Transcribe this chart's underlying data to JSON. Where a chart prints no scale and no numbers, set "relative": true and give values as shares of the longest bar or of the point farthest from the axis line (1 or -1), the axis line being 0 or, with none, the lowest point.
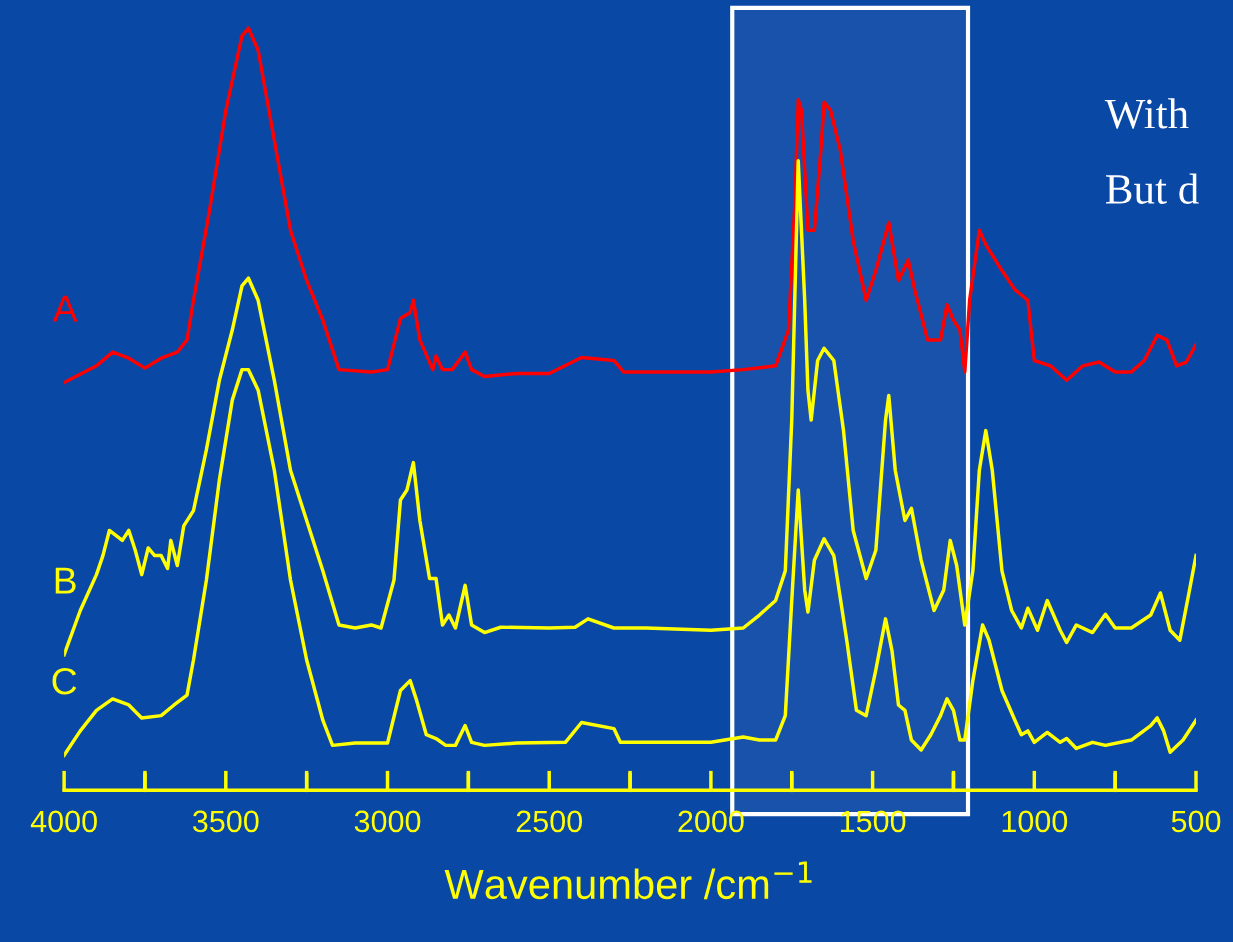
{
  "chart_data": {
    "type": "line",
    "relative": true,
    "xlabel": "Wavenumber /cm$^{−1}$",
    "xlim": [
      4000,
      500
    ],
    "xticks": [
      4000,
      {
        "value": 3750,
        "label": null
      },
      3500,
      {
        "value": 3250,
        "label": null
      },
      3000,
      {
        "value": 2750,
        "label": null
      },
      2500,
      {
        "value": 2250,
        "label": null
      },
      2000,
      {
        "value": 1750,
        "label": null
      },
      1500,
      {
        "value": 1250,
        "label": null
      },
      1000,
      {
        "value": 750,
        "label": null
      },
      500
    ],
    "tick_labels": "x",
    "grid": false,
    "legend": false,
    "marker": "none",
    "line_style": "solid",
    "annotations": [
      "With",
      "But d"
    ],
    "bands": [
      {
        "axis": "x",
        "from": 1934,
        "to": 1205,
        "color": "#ffffff"
      }
    ],
    "series": [
      {
        "name": "A",
        "color": "#ff0000",
        "x": [
          4000,
          3900,
          3850,
          3800,
          3750,
          3700,
          3650,
          3620,
          3600,
          3550,
          3500,
          3450,
          3430,
          3400,
          3350,
          3300,
          3250,
          3200,
          3150,
          3050,
          3000,
          2960,
          2930,
          2920,
          2900,
          2860,
          2850,
          2830,
          2800,
          2760,
          2740,
          2700,
          2600,
          2500,
          2400,
          2300,
          2270,
          2200,
          2000,
          1900,
          1800,
          1760,
          1740,
          1730,
          1720,
          1700,
          1680,
          1660,
          1650,
          1630,
          1600,
          1560,
          1520,
          1490,
          1450,
          1420,
          1390,
          1370,
          1330,
          1290,
          1270,
          1250,
          1230,
          1215,
          1200,
          1170,
          1150,
          1100,
          1060,
          1020,
          1000,
          950,
          900,
          850,
          800,
          750,
          700,
          660,
          620,
          590,
          560,
          530,
          500
        ],
        "values": [
          0.535,
          0.557,
          0.575,
          0.567,
          0.554,
          0.567,
          0.575,
          0.591,
          0.643,
          0.762,
          0.892,
          0.99,
          1.0,
          0.971,
          0.853,
          0.735,
          0.669,
          0.617,
          0.552,
          0.549,
          0.552,
          0.619,
          0.627,
          0.643,
          0.591,
          0.552,
          0.57,
          0.552,
          0.552,
          0.575,
          0.552,
          0.543,
          0.547,
          0.547,
          0.568,
          0.564,
          0.549,
          0.549,
          0.549,
          0.552,
          0.557,
          0.604,
          0.774,
          0.906,
          0.892,
          0.735,
          0.735,
          0.84,
          0.903,
          0.892,
          0.84,
          0.721,
          0.643,
          0.682,
          0.745,
          0.669,
          0.696,
          0.657,
          0.591,
          0.591,
          0.637,
          0.617,
          0.604,
          0.549,
          0.643,
          0.735,
          0.716,
          0.682,
          0.657,
          0.643,
          0.564,
          0.557,
          0.538,
          0.557,
          0.562,
          0.549,
          0.549,
          0.564,
          0.597,
          0.591,
          0.557,
          0.562,
          0.585
        ]
      },
      {
        "name": "B",
        "color": "#ffff00",
        "x": [
          4000,
          3950,
          3900,
          3880,
          3860,
          3820,
          3800,
          3780,
          3760,
          3740,
          3720,
          3700,
          3680,
          3670,
          3650,
          3630,
          3600,
          3560,
          3520,
          3480,
          3450,
          3430,
          3400,
          3350,
          3300,
          3250,
          3200,
          3150,
          3100,
          3050,
          3020,
          2980,
          2960,
          2940,
          2920,
          2900,
          2870,
          2850,
          2830,
          2810,
          2790,
          2760,
          2740,
          2700,
          2650,
          2500,
          2420,
          2380,
          2300,
          2200,
          2000,
          1900,
          1850,
          1800,
          1770,
          1750,
          1730,
          1710,
          1700,
          1690,
          1670,
          1650,
          1620,
          1590,
          1560,
          1520,
          1490,
          1460,
          1450,
          1430,
          1400,
          1380,
          1350,
          1310,
          1280,
          1260,
          1240,
          1215,
          1190,
          1170,
          1150,
          1130,
          1100,
          1070,
          1040,
          1020,
          990,
          960,
          920,
          900,
          870,
          820,
          780,
          750,
          700,
          640,
          610,
          580,
          550,
          520,
          500
        ],
        "values": [
          0.178,
          0.236,
          0.283,
          0.308,
          0.341,
          0.328,
          0.341,
          0.315,
          0.283,
          0.318,
          0.308,
          0.308,
          0.291,
          0.328,
          0.295,
          0.347,
          0.367,
          0.447,
          0.538,
          0.604,
          0.662,
          0.672,
          0.643,
          0.538,
          0.42,
          0.354,
          0.288,
          0.217,
          0.213,
          0.217,
          0.213,
          0.276,
          0.381,
          0.394,
          0.43,
          0.354,
          0.278,
          0.278,
          0.217,
          0.23,
          0.213,
          0.269,
          0.217,
          0.207,
          0.214,
          0.213,
          0.214,
          0.225,
          0.213,
          0.213,
          0.21,
          0.213,
          0.23,
          0.249,
          0.288,
          0.486,
          0.826,
          0.643,
          0.525,
          0.486,
          0.564,
          0.58,
          0.564,
          0.472,
          0.341,
          0.278,
          0.315,
          0.486,
          0.518,
          0.42,
          0.354,
          0.37,
          0.302,
          0.236,
          0.263,
          0.328,
          0.295,
          0.217,
          0.288,
          0.42,
          0.472,
          0.42,
          0.288,
          0.236,
          0.213,
          0.239,
          0.21,
          0.249,
          0.21,
          0.194,
          0.217,
          0.207,
          0.231,
          0.213,
          0.213,
          0.23,
          0.259,
          0.21,
          0.197,
          0.263,
          0.308
        ]
      },
      {
        "name": "C",
        "color": "#ffff00",
        "x": [
          4000,
          3950,
          3900,
          3850,
          3800,
          3760,
          3700,
          3660,
          3620,
          3600,
          3560,
          3520,
          3480,
          3450,
          3430,
          3400,
          3350,
          3300,
          3250,
          3200,
          3170,
          3100,
          3000,
          2960,
          2930,
          2910,
          2880,
          2850,
          2820,
          2790,
          2760,
          2740,
          2700,
          2600,
          2450,
          2400,
          2300,
          2280,
          2100,
          2000,
          1900,
          1850,
          1800,
          1770,
          1750,
          1730,
          1710,
          1700,
          1680,
          1650,
          1620,
          1580,
          1550,
          1520,
          1490,
          1460,
          1440,
          1420,
          1400,
          1380,
          1350,
          1320,
          1290,
          1270,
          1250,
          1230,
          1215,
          1190,
          1160,
          1140,
          1100,
          1060,
          1040,
          1020,
          1000,
          960,
          920,
          900,
          870,
          820,
          780,
          700,
          640,
          620,
          600,
          580,
          540,
          500
        ],
        "values": [
          0.046,
          0.078,
          0.105,
          0.12,
          0.112,
          0.095,
          0.098,
          0.112,
          0.125,
          0.171,
          0.276,
          0.407,
          0.512,
          0.552,
          0.552,
          0.525,
          0.42,
          0.276,
          0.171,
          0.092,
          0.059,
          0.062,
          0.062,
          0.131,
          0.144,
          0.118,
          0.073,
          0.068,
          0.059,
          0.059,
          0.085,
          0.063,
          0.059,
          0.062,
          0.063,
          0.089,
          0.081,
          0.063,
          0.063,
          0.063,
          0.07,
          0.066,
          0.066,
          0.098,
          0.249,
          0.394,
          0.263,
          0.234,
          0.302,
          0.33,
          0.308,
          0.197,
          0.105,
          0.098,
          0.158,
          0.225,
          0.183,
          0.112,
          0.105,
          0.066,
          0.053,
          0.073,
          0.098,
          0.12,
          0.105,
          0.066,
          0.066,
          0.144,
          0.217,
          0.197,
          0.131,
          0.092,
          0.073,
          0.078,
          0.063,
          0.076,
          0.063,
          0.068,
          0.055,
          0.063,
          0.059,
          0.066,
          0.085,
          0.095,
          0.078,
          0.05,
          0.066,
          0.092
        ]
      }
    ]
  }
}
